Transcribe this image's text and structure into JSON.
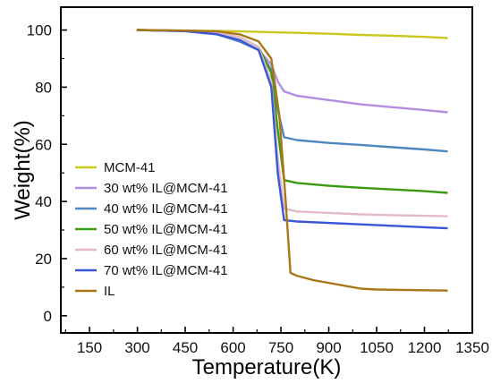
{
  "chart_data": {
    "type": "line",
    "title": "",
    "xlabel": "Temperature(K)",
    "ylabel": "Weight(%)",
    "xlim": [
      60,
      1350
    ],
    "ylim": [
      -6,
      108
    ],
    "xticks": [
      150,
      300,
      450,
      600,
      750,
      900,
      1050,
      1200,
      1350
    ],
    "xtick_labels": [
      "150",
      "300",
      "450",
      "600",
      "750",
      "900",
      "1050",
      "1200",
      "1350"
    ],
    "yticks": [
      0,
      20,
      40,
      60,
      80,
      100
    ],
    "ytick_labels": [
      "0",
      "20",
      "40",
      "60",
      "80",
      "100"
    ],
    "grid": false,
    "legend_position": "lower-left",
    "series": [
      {
        "name": "MCM-41",
        "color": "#c8c81e",
        "x": [
          298,
          450,
          600,
          700,
          800,
          900,
          1000,
          1100,
          1200,
          1273
        ],
        "y": [
          100,
          99.8,
          99.6,
          99.3,
          99,
          98.7,
          98.3,
          98,
          97.6,
          97.2
        ]
      },
      {
        "name": "30 wt% IL@MCM-41",
        "color": "#b58de0",
        "x": [
          298,
          450,
          550,
          620,
          680,
          720,
          740,
          760,
          800,
          900,
          1000,
          1100,
          1200,
          1273
        ],
        "y": [
          100,
          99.6,
          98.5,
          96,
          93,
          88,
          82,
          78.5,
          77,
          75.5,
          74,
          73,
          72,
          71.2
        ]
      },
      {
        "name": "40 wt% IL@MCM-41",
        "color": "#4f86c0",
        "x": [
          298,
          450,
          550,
          620,
          680,
          720,
          740,
          760,
          800,
          900,
          1000,
          1100,
          1200,
          1273
        ],
        "y": [
          100,
          99.6,
          98.5,
          96,
          93,
          86,
          72,
          62.5,
          61.5,
          60.5,
          59.8,
          59,
          58.2,
          57.5
        ]
      },
      {
        "name": "50 wt% IL@MCM-41",
        "color": "#3a9a10",
        "x": [
          298,
          450,
          550,
          620,
          680,
          720,
          740,
          760,
          800,
          900,
          1000,
          1100,
          1200,
          1273
        ],
        "y": [
          100,
          99.7,
          99,
          97.5,
          94,
          85,
          65,
          47.5,
          46.5,
          45.5,
          44.8,
          44.2,
          43.6,
          43
        ]
      },
      {
        "name": "60 wt% IL@MCM-41",
        "color": "#e3b8c8",
        "x": [
          298,
          450,
          550,
          620,
          680,
          720,
          740,
          760,
          800,
          900,
          1000,
          1100,
          1200,
          1273
        ],
        "y": [
          100,
          99.7,
          99,
          97.5,
          94,
          82,
          55,
          37.5,
          36.5,
          36,
          35.5,
          35.2,
          35,
          34.8
        ]
      },
      {
        "name": "70 wt% IL@MCM-41",
        "color": "#3a56d8",
        "x": [
          298,
          450,
          550,
          620,
          680,
          720,
          740,
          760,
          800,
          900,
          1000,
          1100,
          1200,
          1273
        ],
        "y": [
          100,
          99.6,
          98.5,
          96.5,
          93,
          80,
          50,
          33.5,
          33,
          32.5,
          32,
          31.5,
          31,
          30.6
        ]
      },
      {
        "name": "IL",
        "color": "#a87818",
        "x": [
          298,
          450,
          550,
          620,
          680,
          720,
          745,
          765,
          780,
          800,
          850,
          950,
          1000,
          1050,
          1150,
          1273
        ],
        "y": [
          100,
          99.8,
          99.5,
          98.5,
          96,
          90,
          70,
          40,
          15,
          14,
          12.5,
          10.5,
          9.5,
          9.2,
          9,
          8.8
        ]
      }
    ]
  }
}
